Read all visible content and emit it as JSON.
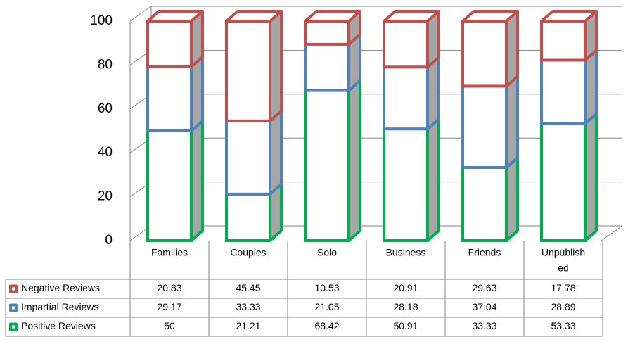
{
  "chart_data": {
    "type": "bar",
    "stacked": true,
    "three_d": true,
    "categories": [
      "Families",
      "Couples",
      "Solo",
      "Business",
      "Friends",
      "Unpublished"
    ],
    "category_labels": [
      [
        "Families"
      ],
      [
        "Couples"
      ],
      [
        "Solo"
      ],
      [
        "Business"
      ],
      [
        "Friends"
      ],
      [
        "Unpublish",
        "ed"
      ]
    ],
    "ylim": [
      0,
      100
    ],
    "yticks": [
      "0",
      "20",
      "40",
      "60",
      "80",
      "100"
    ],
    "grid": true,
    "legend": "data-table-left",
    "data_table": true,
    "series": [
      {
        "name": "Positive Reviews",
        "color": "#00b050",
        "values": [
          50,
          21.21,
          68.42,
          50.91,
          33.33,
          53.33
        ],
        "labels": [
          "50",
          "21.21",
          "68.42",
          "50.91",
          "33.33",
          "53.33"
        ]
      },
      {
        "name": "Impartial Reviews",
        "color": "#4f81bd",
        "values": [
          29.17,
          33.33,
          21.05,
          28.18,
          37.04,
          28.89
        ],
        "labels": [
          "29.17",
          "33.33",
          "21.05",
          "28.18",
          "37.04",
          "28.89"
        ]
      },
      {
        "name": "Negative Reviews",
        "color": "#c0504d",
        "values": [
          20.83,
          45.45,
          10.53,
          20.91,
          29.63,
          17.78
        ],
        "labels": [
          "20.83",
          "45.45",
          "10.53",
          "20.91",
          "29.63",
          "17.78"
        ]
      }
    ],
    "table_row_order": [
      2,
      1,
      0
    ]
  }
}
